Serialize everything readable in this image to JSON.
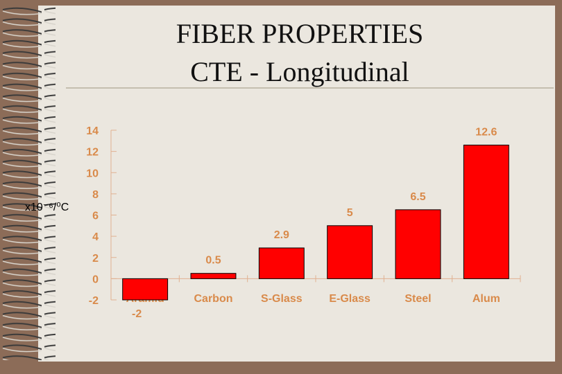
{
  "chart_data": {
    "type": "bar",
    "title": "FIBER PROPERTIES",
    "subtitle": "CTE - Longitudinal",
    "y_label": "x10⁻⁶/⁰C",
    "categories": [
      "Aramid",
      "Carbon",
      "S-Glass",
      "E-Glass",
      "Steel",
      "Alum"
    ],
    "values": [
      -2,
      0.5,
      2.9,
      5,
      6.5,
      12.6
    ],
    "color": "#ff0000",
    "ylim": [
      -2,
      14
    ],
    "yticks": [
      -2,
      0,
      2,
      4,
      6,
      8,
      10,
      12,
      14
    ]
  }
}
